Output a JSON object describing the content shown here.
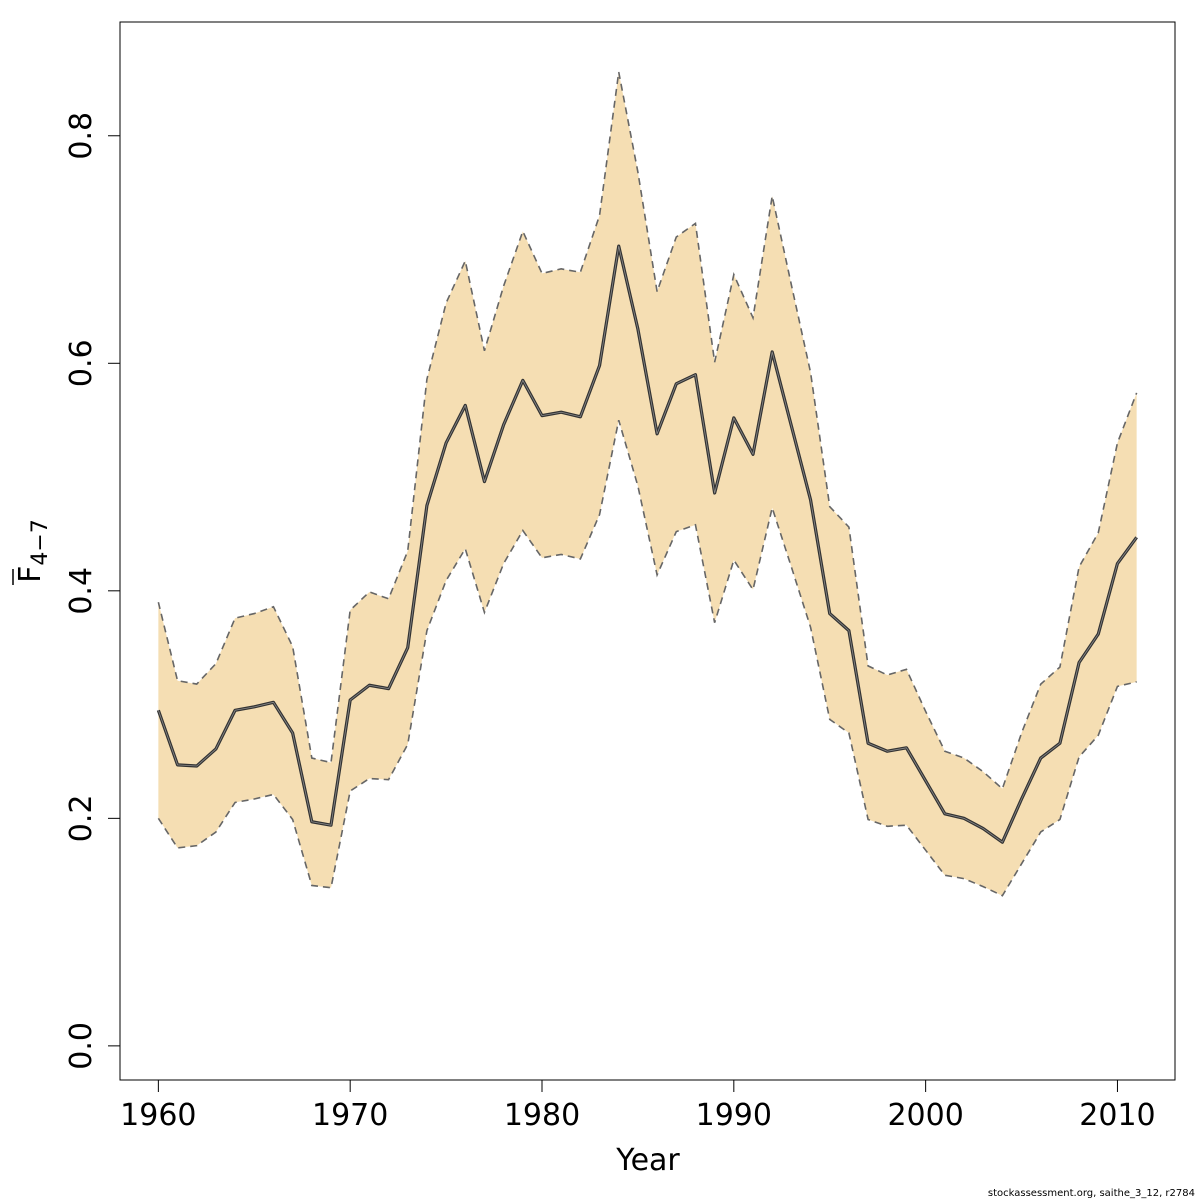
{
  "chart_data": {
    "type": "line",
    "title": "",
    "xlabel": "Year",
    "ylabel_main": "F",
    "ylabel_sub": "4−7",
    "xlim": [
      1958,
      2013
    ],
    "ylim": [
      -0.03,
      0.9
    ],
    "x_ticks": [
      1960,
      1970,
      1980,
      1990,
      2000,
      2010
    ],
    "y_ticks": [
      "0.0",
      "0.2",
      "0.4",
      "0.6",
      "0.8"
    ],
    "grid": false,
    "colors": {
      "band": "#f5deb3",
      "bounds": "#666666",
      "estimate": "#333333"
    },
    "x": [
      1960,
      1961,
      1962,
      1963,
      1964,
      1965,
      1966,
      1967,
      1968,
      1969,
      1970,
      1971,
      1972,
      1973,
      1974,
      1975,
      1976,
      1977,
      1978,
      1979,
      1980,
      1981,
      1982,
      1983,
      1984,
      1985,
      1986,
      1987,
      1988,
      1989,
      1990,
      1991,
      1992,
      1993,
      1994,
      1995,
      1996,
      1997,
      1998,
      1999,
      2000,
      2001,
      2002,
      2003,
      2004,
      2005,
      2006,
      2007,
      2008,
      2009,
      2010,
      2011
    ],
    "series": [
      {
        "role": "estimate",
        "values": [
          0.295,
          0.247,
          0.246,
          0.261,
          0.295,
          0.298,
          0.302,
          0.275,
          0.197,
          0.194,
          0.304,
          0.317,
          0.314,
          0.35,
          0.475,
          0.53,
          0.563,
          0.496,
          0.546,
          0.585,
          0.554,
          0.557,
          0.553,
          0.598,
          0.703,
          0.63,
          0.538,
          0.582,
          0.59,
          0.486,
          0.552,
          0.52,
          0.61,
          0.545,
          0.48,
          0.38,
          0.365,
          0.266,
          0.259,
          0.262,
          0.233,
          0.204,
          0.2,
          0.191,
          0.179,
          0.217,
          0.253,
          0.266,
          0.337,
          0.362,
          0.424,
          0.447
        ]
      },
      {
        "role": "lower",
        "values": [
          0.2,
          0.174,
          0.176,
          0.188,
          0.214,
          0.217,
          0.221,
          0.199,
          0.141,
          0.139,
          0.224,
          0.235,
          0.234,
          0.265,
          0.365,
          0.409,
          0.437,
          0.381,
          0.424,
          0.453,
          0.429,
          0.432,
          0.428,
          0.467,
          0.55,
          0.492,
          0.414,
          0.452,
          0.458,
          0.372,
          0.427,
          0.401,
          0.473,
          0.421,
          0.368,
          0.287,
          0.275,
          0.199,
          0.193,
          0.194,
          0.172,
          0.15,
          0.147,
          0.14,
          0.132,
          0.16,
          0.188,
          0.199,
          0.254,
          0.273,
          0.316,
          0.32
        ]
      },
      {
        "role": "upper",
        "values": [
          0.39,
          0.321,
          0.318,
          0.336,
          0.376,
          0.38,
          0.386,
          0.351,
          0.253,
          0.249,
          0.383,
          0.399,
          0.393,
          0.435,
          0.586,
          0.653,
          0.69,
          0.611,
          0.668,
          0.716,
          0.679,
          0.683,
          0.68,
          0.73,
          0.856,
          0.768,
          0.663,
          0.711,
          0.723,
          0.601,
          0.678,
          0.64,
          0.747,
          0.669,
          0.592,
          0.474,
          0.456,
          0.334,
          0.326,
          0.331,
          0.294,
          0.259,
          0.253,
          0.241,
          0.226,
          0.275,
          0.318,
          0.333,
          0.421,
          0.451,
          0.53,
          0.574
        ]
      }
    ]
  },
  "footer": {
    "credit": "stockassessment.org, saithe_3_12, r2784"
  }
}
